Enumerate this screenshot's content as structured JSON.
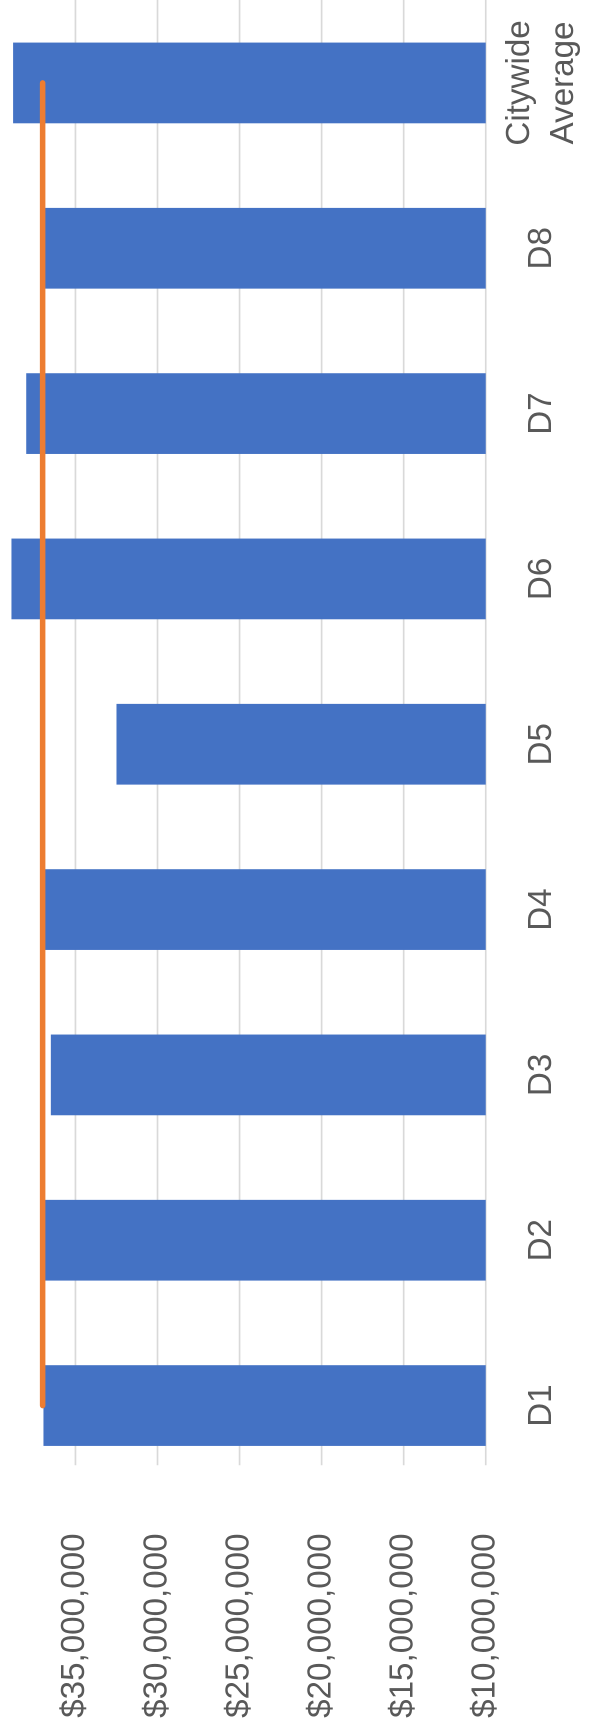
{
  "chart_data": {
    "type": "bar",
    "categories": [
      "D1",
      "D2",
      "D3",
      "D4",
      "D5",
      "D6",
      "D7",
      "D8",
      "Citywide Average"
    ],
    "series": [
      {
        "color": "#4472c4",
        "values": [
          36950000,
          36900000,
          36500000,
          36900000,
          32500000,
          38900000,
          38000000,
          36900000,
          38800000
        ]
      },
      {
        "type": "line",
        "color": "#ed7d31",
        "values": [
          37000000,
          37000000,
          37000000,
          37000000,
          37000000,
          37000000,
          37000000,
          37000000,
          37000000
        ]
      }
    ],
    "ylim": [
      10000000,
      39600000
    ],
    "yticks": [
      {
        "value": 10000000,
        "label": "$10,000,000"
      },
      {
        "value": 15000000,
        "label": "$15,000,000"
      },
      {
        "value": 20000000,
        "label": "$20,000,000"
      },
      {
        "value": 25000000,
        "label": "$25,000,000"
      },
      {
        "value": 30000000,
        "label": "$30,000,000"
      },
      {
        "value": 35000000,
        "label": "$35,000,000"
      }
    ],
    "grid": true
  }
}
